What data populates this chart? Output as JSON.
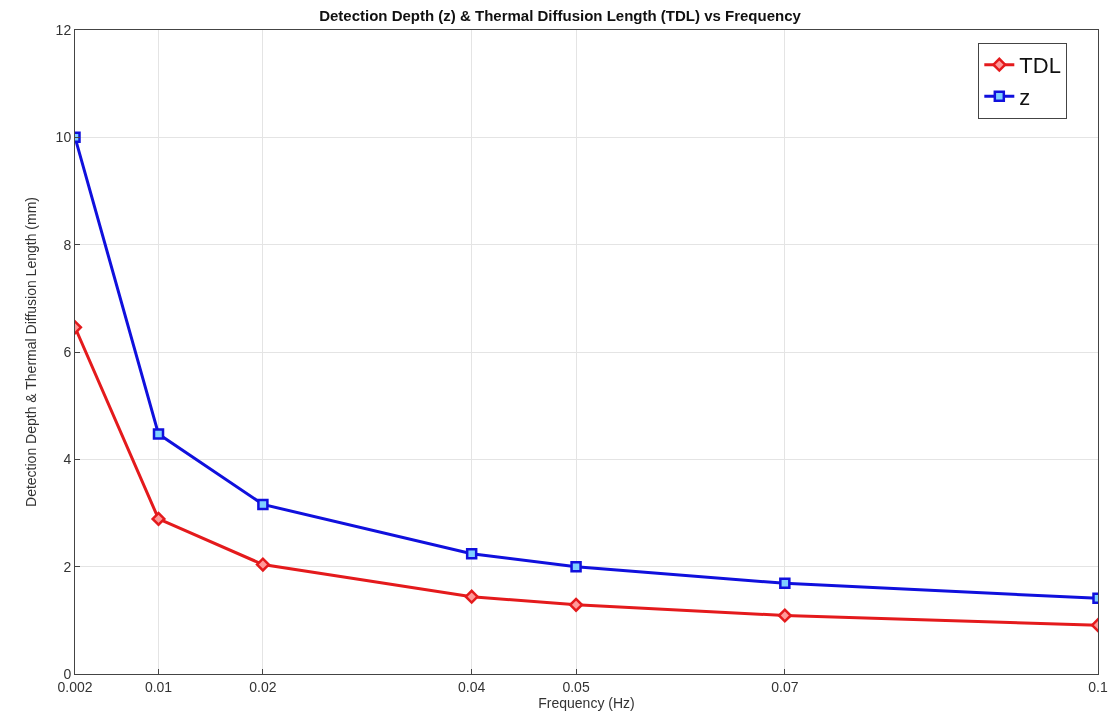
{
  "chart_data": {
    "type": "line",
    "title": "Detection Depth (z) & Thermal Diffusion Length (TDL) vs Frequency",
    "xlabel": "Frequency (Hz)",
    "ylabel": "Detection Depth & Thermal Diffusion Length (mm)",
    "x": [
      0.002,
      0.01,
      0.02,
      0.04,
      0.05,
      0.07,
      0.1
    ],
    "series": [
      {
        "name": "TDL",
        "color": "#e41a1c",
        "marker": "diamond",
        "values": [
          6.46,
          2.89,
          2.04,
          1.44,
          1.29,
          1.09,
          0.91
        ]
      },
      {
        "name": "z",
        "color": "#1010dd",
        "marker": "square",
        "values": [
          10.0,
          4.47,
          3.16,
          2.24,
          2.0,
          1.69,
          1.41
        ]
      }
    ],
    "xlim": [
      0.002,
      0.1
    ],
    "xticks": [
      0.002,
      0.01,
      0.02,
      0.04,
      0.05,
      0.07,
      0.1
    ],
    "ylim": [
      0,
      12
    ],
    "yticks": [
      0,
      2,
      4,
      6,
      8,
      10,
      12
    ],
    "grid": true,
    "legend": "top right",
    "line_style": "solid"
  }
}
